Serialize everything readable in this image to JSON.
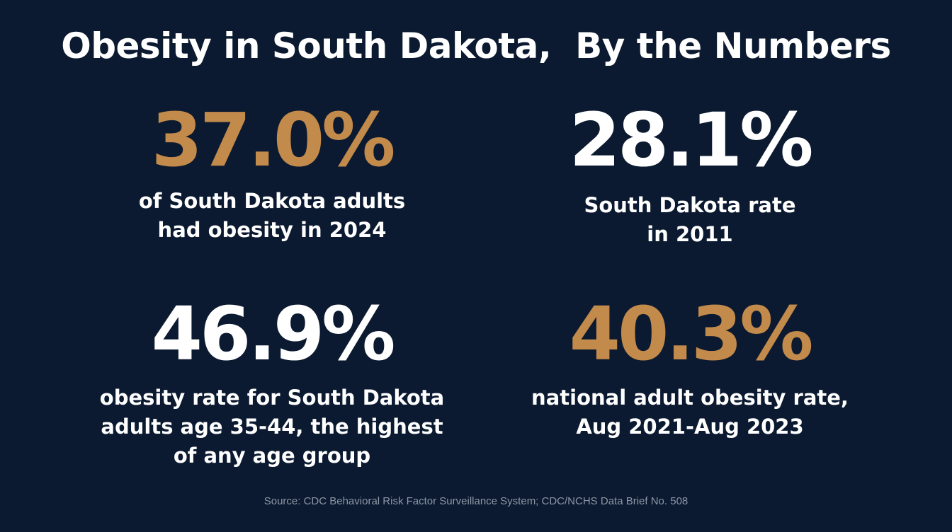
{
  "title": "Obesity in South Dakota,  By the Numbers",
  "colors": {
    "background": "#0b1a30",
    "accent": "#c28a4b",
    "text": "#ffffff",
    "muted": "#8d97a6"
  },
  "stats": [
    {
      "value": "37.0%",
      "caption_lines": [
        "of South Dakota adults",
        "had obesity in 2024"
      ],
      "color": "#c28a4b"
    },
    {
      "value": "28.1%",
      "caption_lines": [
        "South Dakota rate",
        "in 2011"
      ],
      "color": "#ffffff"
    },
    {
      "value": "46.9%",
      "caption_lines": [
        "obesity rate for South Dakota",
        "adults age 35-44, the highest",
        "of any age group"
      ],
      "color": "#ffffff"
    },
    {
      "value": "40.3%",
      "caption_lines": [
        "national adult obesity rate,",
        "Aug 2021-Aug 2023"
      ],
      "color": "#c28a4b"
    }
  ],
  "source": "Source: CDC Behavioral Risk Factor Surveillance System; CDC/NCHS Data Brief No. 508"
}
